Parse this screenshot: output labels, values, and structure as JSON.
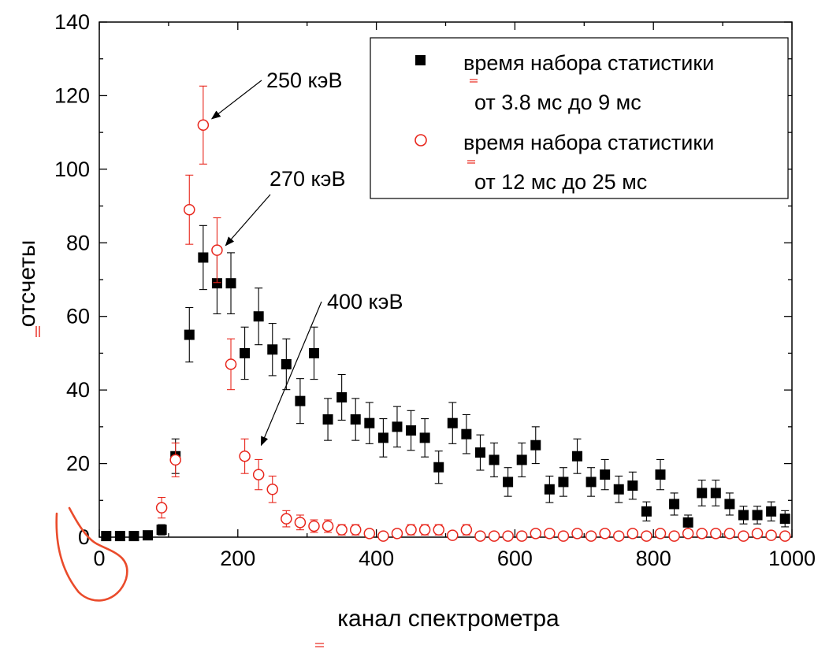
{
  "chart_data": {
    "type": "scatter",
    "xlabel": "канал спектрометра",
    "ylabel": "отсчеты",
    "xlim": [
      0,
      1000
    ],
    "ylim": [
      0,
      140
    ],
    "xticks": [
      0,
      200,
      400,
      600,
      800,
      1000
    ],
    "yticks": [
      0,
      20,
      40,
      60,
      80,
      100,
      120,
      140
    ],
    "grid": false,
    "legend_position": "top-right",
    "series": [
      {
        "name": "время набора статистики от 3.8 мс до 9 мс",
        "legend_line1": "время набора статистики",
        "legend_line2": "от 3.8 мс до 9 мс",
        "marker": "filled-square",
        "color": "#000000",
        "x": [
          10,
          30,
          50,
          70,
          90,
          110,
          130,
          150,
          170,
          190,
          210,
          230,
          250,
          270,
          290,
          310,
          330,
          350,
          370,
          390,
          410,
          430,
          450,
          470,
          490,
          510,
          530,
          550,
          570,
          590,
          610,
          630,
          650,
          670,
          690,
          710,
          730,
          750,
          770,
          790,
          810,
          830,
          850,
          870,
          890,
          910,
          930,
          950,
          970,
          990
        ],
        "y": [
          0.3,
          0.3,
          0.3,
          0.5,
          2,
          22,
          55,
          76,
          69,
          69,
          50,
          60,
          51,
          47,
          37,
          50,
          32,
          38,
          32,
          31,
          27,
          30,
          29,
          27,
          19,
          31,
          28,
          23,
          21,
          15,
          21,
          25,
          13,
          15,
          22,
          15,
          17,
          13,
          14,
          7,
          17,
          9,
          4,
          12,
          12,
          9,
          6,
          6,
          7,
          5
        ],
        "err": [
          0.5,
          0.5,
          0.5,
          0.7,
          1.4,
          4.7,
          7.4,
          8.7,
          8.3,
          8.3,
          7.1,
          7.7,
          7.1,
          6.9,
          6.1,
          7.1,
          5.7,
          6.2,
          5.7,
          5.6,
          5.2,
          5.5,
          5.4,
          5.2,
          4.4,
          5.6,
          5.3,
          4.8,
          4.6,
          3.9,
          4.6,
          5,
          3.6,
          3.9,
          4.7,
          3.9,
          4.1,
          3.6,
          3.7,
          2.6,
          4.1,
          3,
          2,
          3.5,
          3.5,
          3,
          2.4,
          2.4,
          2.6,
          2.2
        ]
      },
      {
        "name": "время набора статистики от 12 мс до 25 мс",
        "legend_line1": "время набора статистики",
        "legend_line2": "от 12 мс до 25 мс",
        "marker": "open-circle",
        "color": "#e8261c",
        "x": [
          90,
          110,
          130,
          150,
          170,
          190,
          210,
          230,
          250,
          270,
          290,
          310,
          330,
          350,
          370,
          390,
          410,
          430,
          450,
          470,
          490,
          510,
          530,
          550,
          570,
          590,
          610,
          630,
          650,
          670,
          690,
          710,
          730,
          750,
          770,
          790,
          810,
          830,
          850,
          870,
          890,
          910,
          930,
          950,
          970,
          990
        ],
        "y": [
          8,
          21,
          89,
          112,
          78,
          47,
          22,
          17,
          13,
          5,
          4,
          3,
          3,
          2,
          2,
          1,
          0.3,
          1,
          2,
          2,
          2,
          0.5,
          2,
          0.3,
          0.3,
          0.3,
          0.3,
          1,
          1,
          0.3,
          1,
          0.3,
          1,
          0.3,
          1,
          0.3,
          1,
          0.3,
          1,
          1,
          1,
          1,
          0.3,
          1,
          0.5,
          0.3
        ],
        "err": [
          2.8,
          4.6,
          9.4,
          10.6,
          8.8,
          6.9,
          4.7,
          4.1,
          3.6,
          2.2,
          2,
          1.7,
          1.7,
          1.4,
          1.4,
          1,
          0.5,
          1,
          1.4,
          1.4,
          1.4,
          0.7,
          1.4,
          0.5,
          0.5,
          0.5,
          0.5,
          1,
          1,
          0.5,
          1,
          0.5,
          1,
          0.5,
          1,
          0.5,
          1,
          0.5,
          1,
          1,
          1,
          1,
          0.5,
          1,
          0.7,
          0.5
        ]
      }
    ],
    "annotations": [
      {
        "text": "250 кэВ",
        "x": 150,
        "y": 112
      },
      {
        "text": "270 кэВ",
        "x": 170,
        "y": 78
      },
      {
        "text": "400 кэВ",
        "x": 230,
        "y": 22
      }
    ]
  },
  "colors": {
    "axis": "#000000",
    "series1": "#000000",
    "series2": "#e8261c",
    "scribble": "#ea4b2b"
  }
}
